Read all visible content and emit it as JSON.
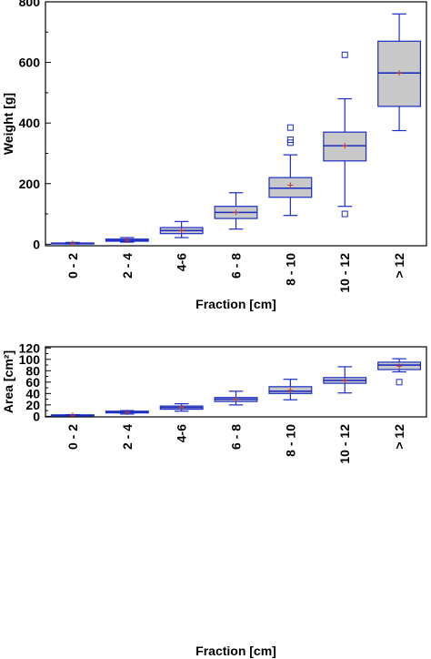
{
  "colors": {
    "box_fill": "#c8c8c8",
    "box_edge": "#1a2bc4",
    "mean_marker": "#c0392b",
    "outlier": "#1a2bc4",
    "axis": "#000000"
  },
  "chart_data": [
    {
      "type": "box",
      "xlabel": "Fraction [cm]",
      "ylabel": "Weight [g]",
      "ylim": [
        -5,
        800
      ],
      "yticks": [
        0,
        200,
        400,
        600,
        800
      ],
      "grid": false,
      "categories": [
        "0 - 2",
        "2 - 4",
        "4-6",
        "6 - 8",
        "8 - 10",
        "10 - 12",
        "> 12"
      ],
      "boxes": [
        {
          "whisker_low": 1,
          "q1": 2,
          "median": 3,
          "q3": 4,
          "whisker_high": 6,
          "mean": 3,
          "outliers": []
        },
        {
          "whisker_low": 7,
          "q1": 10,
          "median": 13,
          "q3": 17,
          "whisker_high": 22,
          "mean": 13,
          "outliers": []
        },
        {
          "whisker_low": 22,
          "q1": 35,
          "median": 45,
          "q3": 55,
          "whisker_high": 75,
          "mean": 45,
          "outliers": []
        },
        {
          "whisker_low": 50,
          "q1": 85,
          "median": 105,
          "q3": 125,
          "whisker_high": 170,
          "mean": 105,
          "outliers": []
        },
        {
          "whisker_low": 95,
          "q1": 155,
          "median": 185,
          "q3": 220,
          "whisker_high": 295,
          "mean": 195,
          "outliers": [
            335,
            345,
            385
          ]
        },
        {
          "whisker_low": 125,
          "q1": 275,
          "median": 325,
          "q3": 370,
          "whisker_high": 480,
          "mean": 325,
          "outliers": [
            100,
            625
          ]
        },
        {
          "whisker_low": 375,
          "q1": 455,
          "median": 565,
          "q3": 670,
          "whisker_high": 760,
          "mean": 565,
          "outliers": []
        }
      ]
    },
    {
      "type": "box",
      "xlabel": "Fraction [cm]",
      "ylabel": "Area [cm²]",
      "ylim": [
        -1,
        122
      ],
      "yticks": [
        0,
        20,
        40,
        60,
        80,
        100,
        120
      ],
      "grid": false,
      "categories": [
        "0 - 2",
        "2 - 4",
        "4-6",
        "6 - 8",
        "8 - 10",
        "10 - 12",
        "> 12"
      ],
      "boxes": [
        {
          "whisker_low": 1.5,
          "q1": 2,
          "median": 2,
          "q3": 2.5,
          "whisker_high": 3,
          "mean": 2,
          "outliers": []
        },
        {
          "whisker_low": 4,
          "q1": 6,
          "median": 7,
          "q3": 9,
          "whisker_high": 10,
          "mean": 7,
          "outliers": []
        },
        {
          "whisker_low": 9,
          "q1": 12.5,
          "median": 15.5,
          "q3": 18,
          "whisker_high": 22,
          "mean": 15.5,
          "outliers": []
        },
        {
          "whisker_low": 20,
          "q1": 26,
          "median": 30,
          "q3": 33,
          "whisker_high": 44,
          "mean": 29.5,
          "outliers": []
        },
        {
          "whisker_low": 29,
          "q1": 40,
          "median": 44,
          "q3": 52,
          "whisker_high": 65,
          "mean": 45.5,
          "outliers": []
        },
        {
          "whisker_low": 41,
          "q1": 58,
          "median": 63,
          "q3": 68,
          "whisker_high": 87,
          "mean": 62.5,
          "outliers": []
        },
        {
          "whisker_low": 78,
          "q1": 82,
          "median": 90,
          "q3": 95,
          "whisker_high": 101,
          "mean": 88,
          "outliers": [
            60
          ]
        }
      ]
    }
  ]
}
